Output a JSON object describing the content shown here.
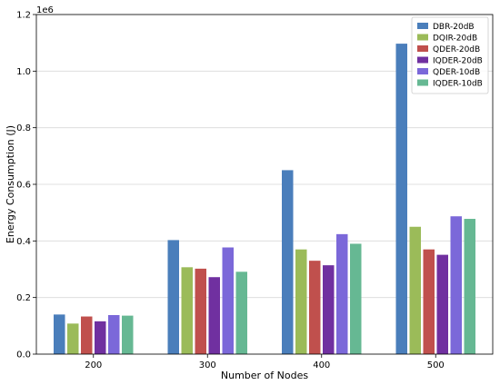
{
  "chart_data": {
    "type": "bar",
    "categories": [
      "200",
      "300",
      "400",
      "500"
    ],
    "series": [
      {
        "name": "DBR-20dB",
        "color": "#4a7ebb",
        "values": [
          140000,
          403000,
          650000,
          1097000
        ]
      },
      {
        "name": "DQIR-20dB",
        "color": "#9bbb59",
        "values": [
          108000,
          307000,
          370000,
          450000
        ]
      },
      {
        "name": "QDER-20dB",
        "color": "#c0504d",
        "values": [
          133000,
          302000,
          330000,
          370000
        ]
      },
      {
        "name": "IQDER-20dB",
        "color": "#7030a0",
        "values": [
          116000,
          272000,
          314000,
          351000
        ]
      },
      {
        "name": "QDER-10dB",
        "color": "#7b68d9",
        "values": [
          138000,
          377000,
          424000,
          487000
        ]
      },
      {
        "name": "IQDER-10dB",
        "color": "#66b893",
        "values": [
          136000,
          291000,
          390000,
          478000
        ]
      }
    ],
    "xlabel": "Number of Nodes",
    "ylabel": "Energy Consumption (J)",
    "yscale_label": "1e6",
    "ylim": [
      0,
      1200000
    ],
    "yticks": [
      0,
      200000,
      400000,
      600000,
      800000,
      1000000,
      1200000
    ],
    "ytick_labels": [
      "0.0",
      "0.2",
      "0.4",
      "0.6",
      "0.8",
      "1.0",
      "1.2"
    ],
    "grid": "horizontal",
    "legend_position": "top-right"
  }
}
